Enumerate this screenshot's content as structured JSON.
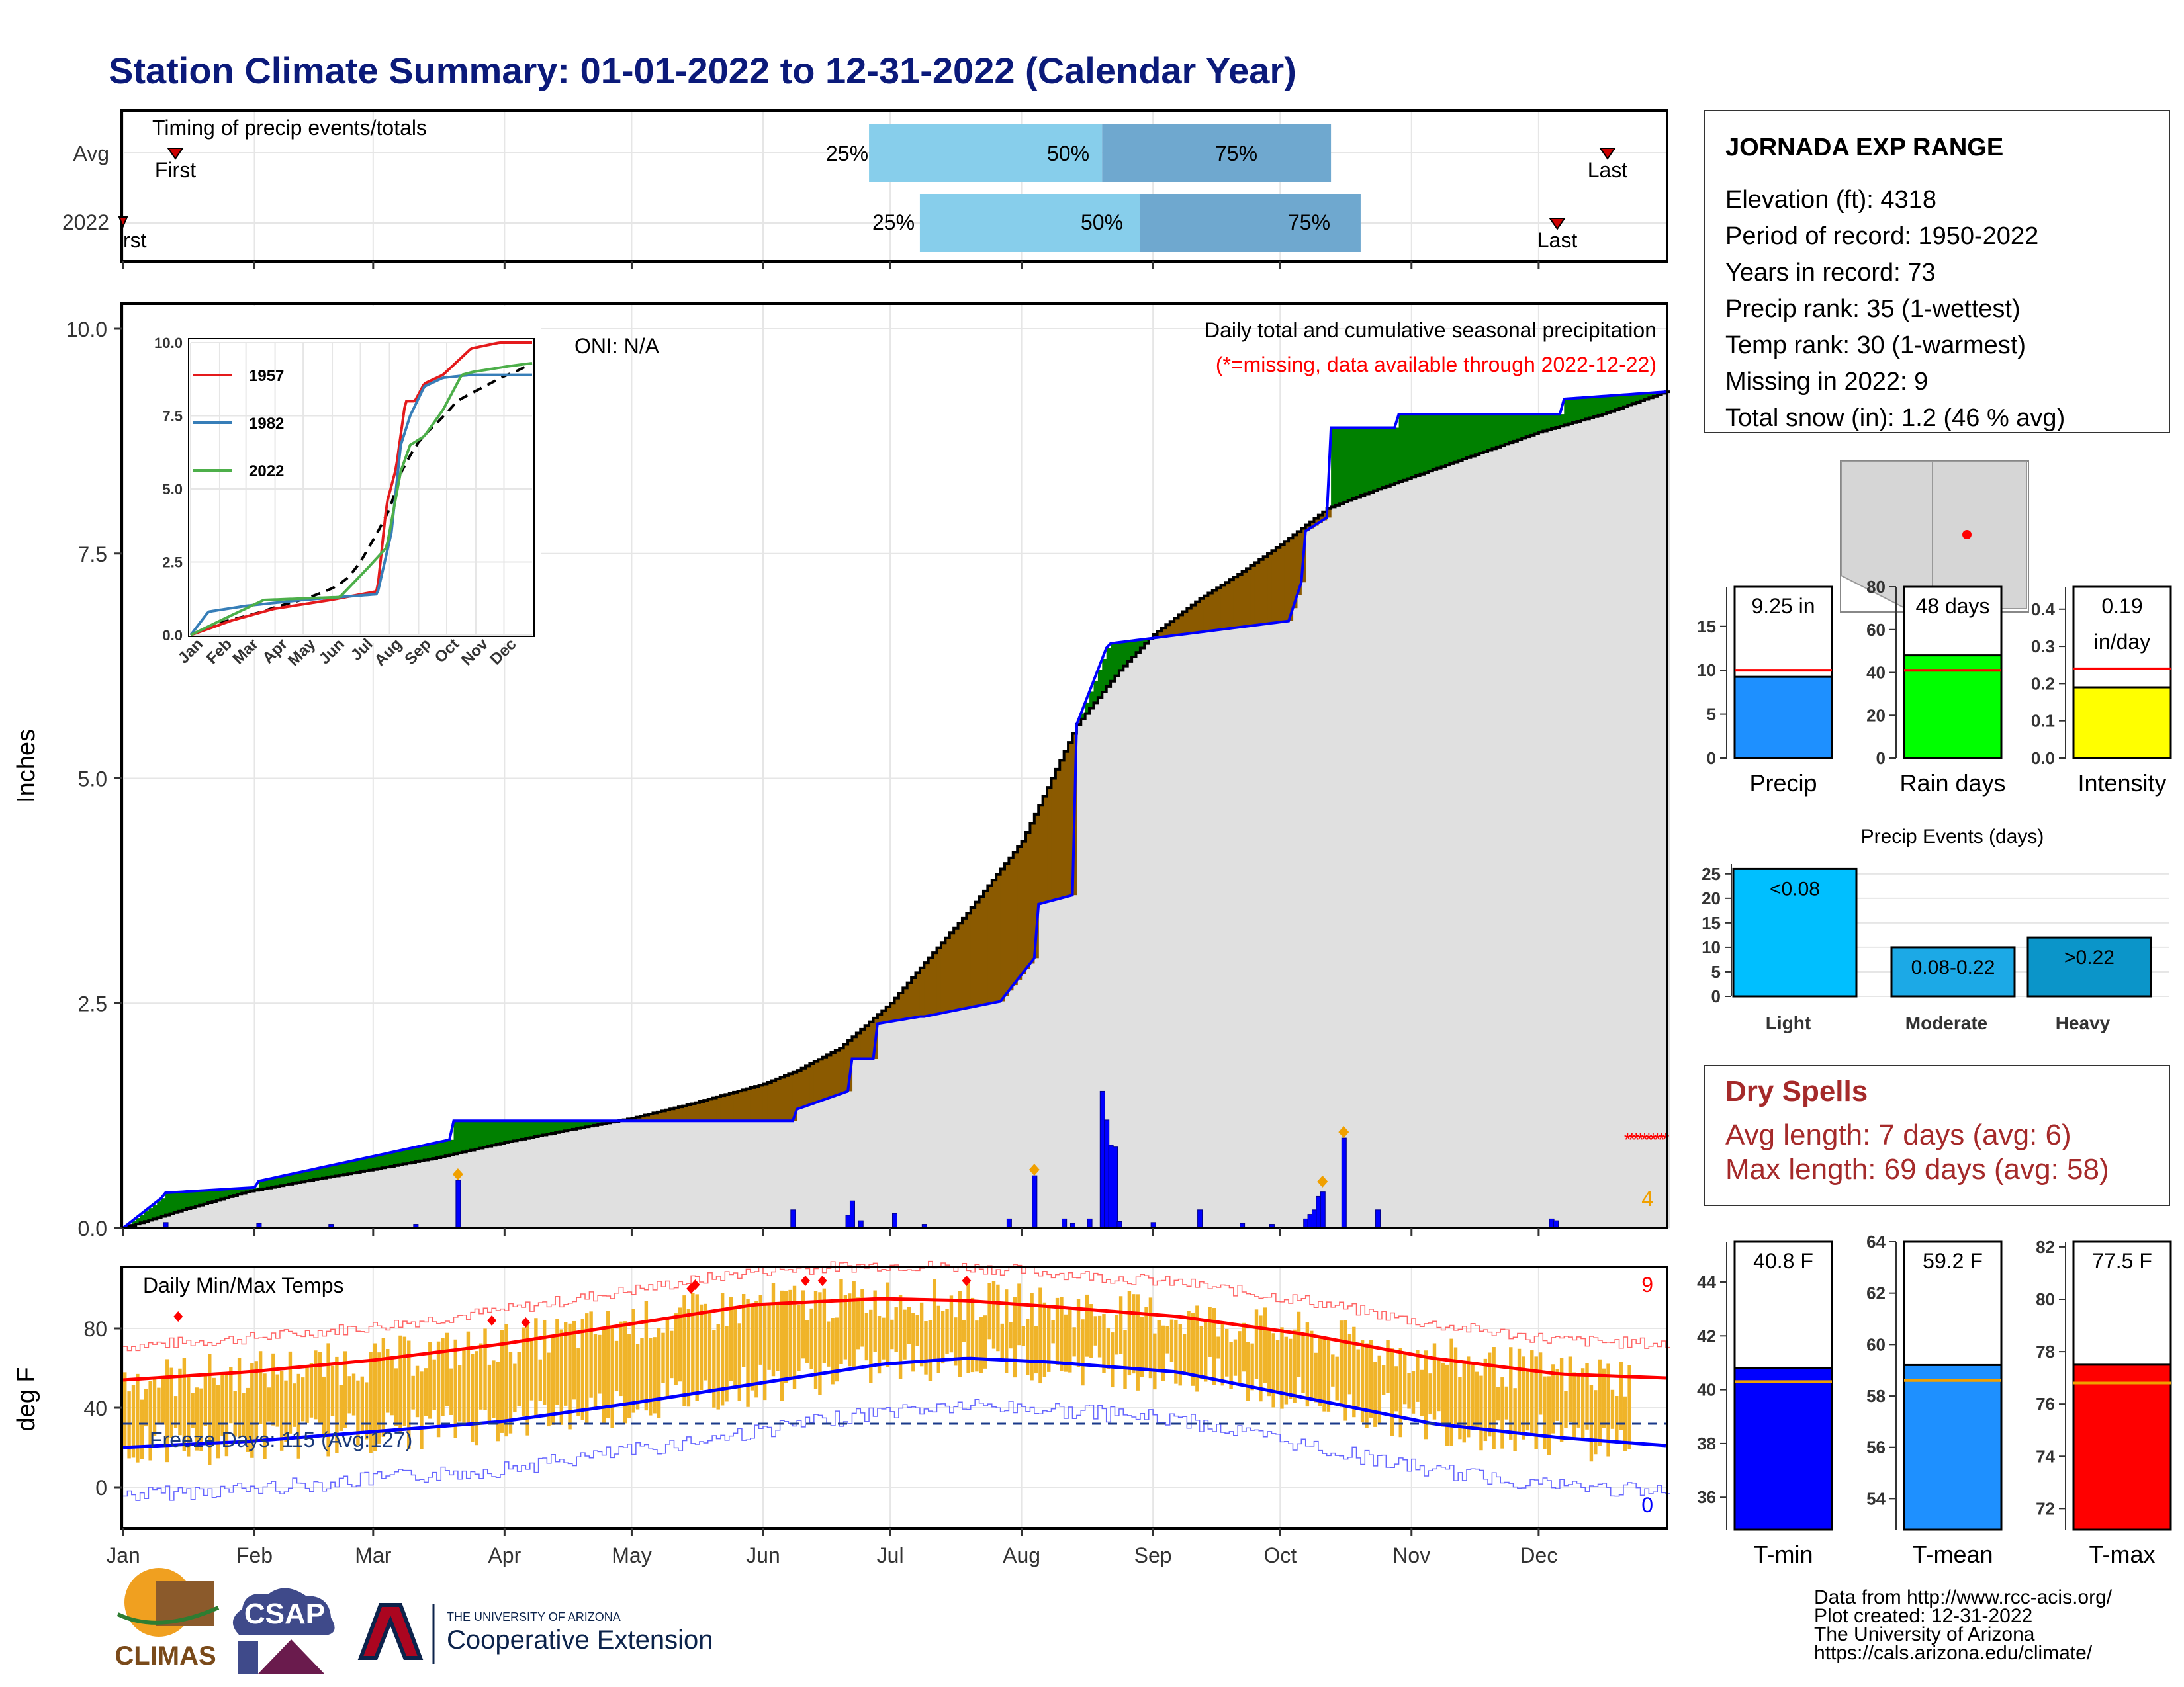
{
  "title": "Station Climate Summary: 01-01-2022 to 12-31-2022 (Calendar Year)",
  "months": [
    "Jan",
    "Feb",
    "Mar",
    "Apr",
    "May",
    "Jun",
    "Jul",
    "Aug",
    "Sep",
    "Oct",
    "Nov",
    "Dec"
  ],
  "colors": {
    "title": "#0b1a7a",
    "cumulative_fill": "#e0e0e0",
    "above_avg": "#008000",
    "below_avg": "#8b5a00",
    "daily_bars": "#0000ff",
    "max_temp_line": "#ff0000",
    "min_temp_line": "#0000ff",
    "temp_bars": "#f0b429",
    "dry_spell_text": "#a52a2a",
    "light_blue": "#87ceeb",
    "mid_blue": "#6fa8cf"
  },
  "timing_panel": {
    "title": "Timing of precip events/totals",
    "rows": [
      "Avg",
      "2022"
    ],
    "first_label": "First",
    "first_label_2022": "rst",
    "last_label": "Last",
    "p25": "25%",
    "p50": "50%",
    "p75": "75%"
  },
  "station": {
    "name": "JORNADA EXP RANGE",
    "lines": [
      "Elevation (ft): 4318",
      "Period of record: 1950-2022",
      "Years in record: 73",
      "Precip rank: 35 (1-wettest)",
      "Temp rank: 30 (1-warmest)",
      "Missing in 2022: 9",
      "Total snow (in): 1.2 (46 % avg)"
    ]
  },
  "precip_panel": {
    "ylabel": "Inches",
    "legend_title": "Daily total and cumulative seasonal precipitation",
    "missing_note": "(*=missing, data available through 2022-12-22)",
    "oni": "ONI: N/A",
    "missing_count": "4"
  },
  "inset": {
    "series": [
      "1957",
      "1982",
      "2022"
    ],
    "series_colors": [
      "#e41a1c",
      "#377eb8",
      "#4daf4a"
    ]
  },
  "mini_bars": {
    "precip": {
      "label": "Precip",
      "value_text": "9.25 in",
      "value": 9.25,
      "avg": 10.0,
      "ymax": 19.5,
      "color": "#1e90ff",
      "ticks": [
        "0",
        "5",
        "10",
        "15"
      ]
    },
    "rain_days": {
      "label": "Rain days",
      "value_text": "48 days",
      "value": 48,
      "avg": 41,
      "ymax": 80,
      "color": "#00ff00",
      "ticks": [
        "0",
        "20",
        "40",
        "60",
        "80"
      ]
    },
    "intensity": {
      "label": "Intensity",
      "value_text": "0.19",
      "value_text2": "in/day",
      "value": 0.19,
      "avg": 0.24,
      "ymax": 0.46,
      "color": "#ffff00",
      "ticks": [
        "0.0",
        "0.1",
        "0.2",
        "0.3",
        "0.4"
      ]
    }
  },
  "precip_events": {
    "title": "Precip Events (days)",
    "categories": [
      "Light",
      "Moderate",
      "Heavy"
    ],
    "values": [
      26,
      10,
      12
    ],
    "bar_labels": [
      "<0.08",
      "0.08-0.22",
      ">0.22"
    ],
    "colors": [
      "#00bfff",
      "#1ca9e6",
      "#0b95c9"
    ],
    "ticks": [
      "0",
      "5",
      "10",
      "15",
      "20",
      "25"
    ]
  },
  "dry_spells": {
    "title": "Dry Spells",
    "avg_length": "Avg length: 7 days (avg: 6)",
    "max_length": "Max length: 69 days (avg: 58)"
  },
  "temp_panel": {
    "ylabel": "deg F",
    "title": "Daily Min/Max Temps",
    "freeze": "Freeze Days: 115 (Avg:127)",
    "hot_count": "9",
    "cold_count": "0"
  },
  "temp_bars": {
    "tmin": {
      "label": "T-min",
      "value_text": "40.8 F",
      "value": 40.8,
      "avg": 40.3,
      "ymin": 34.8,
      "ymax": 45.5,
      "color": "#0000ff",
      "ticks": [
        "36",
        "38",
        "40",
        "42",
        "44"
      ]
    },
    "tmean": {
      "label": "T-mean",
      "value_text": "59.2 F",
      "value": 59.2,
      "avg": 58.6,
      "ymin": 52.8,
      "ymax": 64.0,
      "color": "#1e90ff",
      "ticks": [
        "54",
        "56",
        "58",
        "60",
        "62",
        "64"
      ]
    },
    "tmax": {
      "label": "T-max",
      "value_text": "77.5 F",
      "value": 77.5,
      "avg": 76.8,
      "ymin": 71.2,
      "ymax": 82.2,
      "color": "#ff0000",
      "ticks": [
        "72",
        "74",
        "76",
        "78",
        "80",
        "82"
      ]
    }
  },
  "footer": {
    "lines": [
      "Data from http://www.rcc-acis.org/",
      "Plot created: 12-31-2022",
      "The University of Arizona",
      "https://cals.arizona.edu/climate/"
    ],
    "logos": {
      "climas": "CLIMAS",
      "csap": "CSAP",
      "ua_small": "THE UNIVERSITY OF ARIZONA",
      "coop": "Cooperative Extension"
    }
  },
  "chart_data": [
    {
      "type": "area",
      "title": "Daily total and cumulative seasonal precipitation",
      "ylabel": "Inches",
      "ylim": [
        0,
        10
      ],
      "x_unit": "day of year",
      "avg_cumulative": {
        "x": [
          1,
          15,
          30,
          45,
          60,
          75,
          91,
          105,
          121,
          135,
          152,
          160,
          170,
          182,
          190,
          200,
          213,
          218,
          226,
          236,
          244,
          255,
          265,
          274,
          285,
          296,
          305,
          320,
          335,
          350,
          365
        ],
        "y": [
          0.0,
          0.2,
          0.4,
          0.53,
          0.65,
          0.78,
          0.95,
          1.08,
          1.22,
          1.38,
          1.6,
          1.75,
          2.0,
          2.5,
          2.95,
          3.5,
          4.3,
          4.8,
          5.6,
          6.2,
          6.6,
          7.0,
          7.3,
          7.6,
          8.0,
          8.2,
          8.35,
          8.6,
          8.85,
          9.05,
          9.3
        ]
      },
      "cumulative_2022": {
        "x": [
          1,
          10,
          11,
          32,
          33,
          78,
          79,
          124,
          125,
          159,
          160,
          172,
          173,
          178,
          179,
          189,
          190,
          208,
          216,
          217,
          225,
          226,
          233,
          234,
          276,
          279,
          280,
          285,
          286,
          301,
          302,
          340,
          341,
          365
        ],
        "y": [
          0.0,
          0.33,
          0.39,
          0.45,
          0.52,
          0.98,
          1.19,
          1.19,
          1.19,
          1.19,
          1.32,
          1.52,
          1.88,
          1.88,
          2.27,
          2.35,
          2.35,
          2.52,
          3.0,
          3.6,
          3.7,
          5.6,
          6.45,
          6.5,
          6.75,
          7.18,
          7.75,
          7.9,
          8.9,
          8.9,
          9.05,
          9.05,
          9.22,
          9.3
        ]
      },
      "daily": {
        "x": [
          11,
          33,
          50,
          70,
          80,
          159,
          172,
          173,
          175,
          183,
          190,
          210,
          216,
          223,
          225,
          229,
          232,
          233,
          234,
          235,
          236,
          244,
          255,
          265,
          272,
          280,
          281,
          282,
          283,
          284,
          289,
          297,
          338,
          339
        ],
        "y": [
          0.06,
          0.05,
          0.04,
          0.04,
          0.53,
          0.2,
          0.14,
          0.3,
          0.08,
          0.16,
          0.04,
          0.1,
          0.58,
          0.1,
          0.05,
          0.1,
          1.52,
          1.2,
          0.92,
          0.9,
          0.07,
          0.06,
          0.2,
          0.05,
          0.04,
          0.1,
          0.15,
          0.2,
          0.35,
          0.4,
          1.0,
          0.2,
          0.1,
          0.08
        ]
      },
      "oni": "ONI: N/A"
    },
    {
      "type": "line",
      "title": "",
      "series": [
        {
          "name": "1957",
          "x": [
            1,
            45,
            90,
            150,
            200,
            210,
            220,
            230,
            240,
            250,
            270,
            300,
            330,
            365
          ],
          "y": [
            0,
            0.5,
            0.9,
            1.2,
            1.5,
            4.5,
            5.7,
            8.0,
            8.0,
            8.6,
            8.9,
            9.8,
            10.0,
            10.0
          ]
        },
        {
          "name": "1982",
          "x": [
            1,
            20,
            60,
            120,
            200,
            215,
            225,
            235,
            250,
            270,
            300,
            330,
            365
          ],
          "y": [
            0,
            0.8,
            1.0,
            1.2,
            1.4,
            3.5,
            6.5,
            7.5,
            8.5,
            8.8,
            8.9,
            8.9,
            8.9
          ]
        },
        {
          "name": "2022",
          "x": [
            1,
            33,
            79,
            160,
            190,
            210,
            225,
            235,
            250,
            270,
            290,
            302,
            341,
            365
          ],
          "y": [
            0,
            0.5,
            1.2,
            1.3,
            2.3,
            3.0,
            5.6,
            6.5,
            6.8,
            7.7,
            8.9,
            9.0,
            9.2,
            9.3
          ]
        }
      ],
      "ylim": [
        0,
        10
      ],
      "yticks": [
        "0.0",
        "2.5",
        "5.0",
        "7.5",
        "10.0"
      ]
    },
    {
      "type": "bar",
      "title": "Daily Min/Max Temps",
      "ylabel": "deg F",
      "ylim": [
        -20,
        110
      ],
      "avg_max": {
        "x": [
          1,
          30,
          60,
          90,
          120,
          150,
          180,
          200,
          220,
          250,
          280,
          310,
          340,
          365
        ],
        "y": [
          54,
          58,
          64,
          72,
          82,
          92,
          95,
          94,
          91,
          86,
          77,
          65,
          57,
          55
        ]
      },
      "avg_min": {
        "x": [
          1,
          30,
          60,
          90,
          120,
          150,
          180,
          200,
          220,
          250,
          280,
          310,
          340,
          365
        ],
        "y": [
          20,
          23,
          28,
          33,
          42,
          52,
          62,
          65,
          63,
          58,
          45,
          32,
          25,
          21
        ]
      },
      "freeze_line": 32,
      "freeze_days": "Freeze Days: 115 (Avg:127)"
    }
  ]
}
